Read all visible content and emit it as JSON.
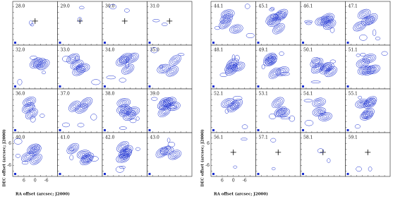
{
  "left_grid": {
    "panels": [
      "28.0",
      "29.0",
      "30.0",
      "31.0",
      "32.0",
      "33.0",
      "34.0",
      "35.0",
      "36.0",
      "37.0",
      "38.0",
      "39.0",
      "40.0",
      "41.0",
      "42.0",
      "43.0"
    ]
  },
  "right_grid": {
    "panels": [
      "44.1",
      "45.1",
      "46.1",
      "47.1",
      "48.1",
      "49.1",
      "50.1",
      "51.1",
      "52.1",
      "53.1",
      "54.1",
      "55.1",
      "56.1",
      "57.1",
      "58.1",
      "59.1"
    ]
  },
  "y_axis_label": "DEC offset (arcsec; J2000)",
  "x_axis_label": "RA offset (arcsec; J2000)",
  "x_tick_labels": [
    "6",
    "0",
    "-6"
  ],
  "y_tick_labels": [
    "6",
    "-6"
  ]
}
